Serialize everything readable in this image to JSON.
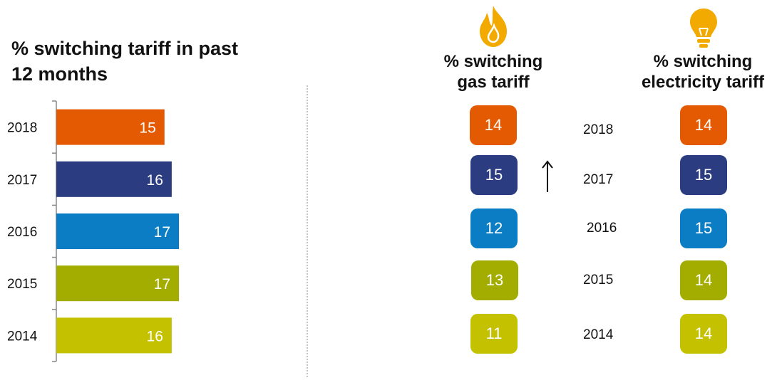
{
  "title": "% switching tariff in past 12 months",
  "colors": {
    "2018": "#e35a02",
    "2017": "#2b3d80",
    "2016": "#0a7dc4",
    "2015": "#a3ad00",
    "2014": "#c3c100",
    "flame": "#f2a900",
    "bulb": "#f2a900"
  },
  "chart_data": {
    "type": "bar",
    "orientation": "horizontal",
    "categories": [
      "2018",
      "2017",
      "2016",
      "2015",
      "2014"
    ],
    "values": [
      15,
      16,
      17,
      17,
      16
    ],
    "title": "% switching tariff in past 12 months",
    "xlabel": "",
    "ylabel": "",
    "xlim": [
      0,
      17
    ]
  },
  "gas": {
    "header": "% switching gas tariff",
    "icon": "flame-icon",
    "values": [
      14,
      15,
      12,
      13,
      11
    ],
    "change_marker": {
      "year": "2017",
      "direction": "up"
    }
  },
  "electricity": {
    "header": "% switching electricity tariff",
    "icon": "lightbulb-icon",
    "values": [
      14,
      15,
      15,
      14,
      14
    ]
  },
  "years": [
    "2018",
    "2017",
    "2016",
    "2015",
    "2014"
  ]
}
